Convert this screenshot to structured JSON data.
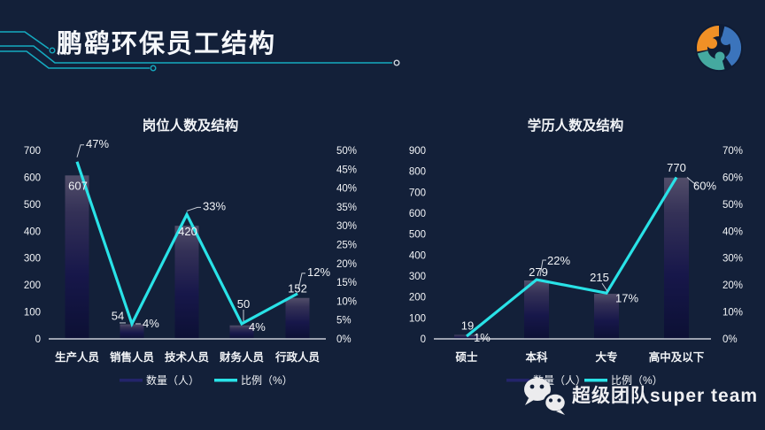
{
  "page": {
    "title": "鹏鹞环保员工结构",
    "watermark_text": "超级团队super team",
    "colors": {
      "background": "#132039",
      "accent_cyan": "#29e2e7",
      "decor_teal": "#15aac0",
      "text": "#f2f4f7",
      "axis_line": "#c9ced8",
      "bar_gradient_top": "#524e6a",
      "bar_gradient_mid": "#17174a",
      "bar_gradient_bottom": "#0c1034",
      "legend_bar_marker": "#23246a",
      "logo_orange": "#f09026",
      "logo_blue": "#3b74bc",
      "logo_teal": "#45a9a0"
    }
  },
  "chart_data": [
    {
      "type": "bar+line",
      "title": "岗位人数及结构",
      "categories": [
        "生产人员",
        "销售人员",
        "技术人员",
        "财务人员",
        "行政人员"
      ],
      "series": [
        {
          "name": "数量（人）",
          "type": "bar",
          "axis": "left",
          "values": [
            607,
            54,
            420,
            50,
            152
          ]
        },
        {
          "name": "比例（%）",
          "type": "line",
          "axis": "right",
          "values_percent": [
            47,
            4,
            33,
            4,
            12
          ]
        }
      ],
      "left_axis": {
        "min": 0,
        "max": 700,
        "step": 100
      },
      "right_axis": {
        "min": 0,
        "max": 50,
        "step": 5,
        "unit": "%"
      },
      "legend_position": "bottom",
      "grid": false
    },
    {
      "type": "bar+line",
      "title": "学历人数及结构",
      "categories": [
        "硕士",
        "本科",
        "大专",
        "高中及以下"
      ],
      "series": [
        {
          "name": "数量（人）",
          "type": "bar",
          "axis": "left",
          "values": [
            19,
            279,
            215,
            770
          ]
        },
        {
          "name": "比例（%）",
          "type": "line",
          "axis": "right",
          "values_percent": [
            1,
            22,
            17,
            60
          ]
        }
      ],
      "left_axis": {
        "min": 0,
        "max": 900,
        "step": 100
      },
      "right_axis": {
        "min": 0,
        "max": 70,
        "step": 10,
        "unit": "%"
      },
      "legend_position": "bottom",
      "grid": false
    }
  ]
}
